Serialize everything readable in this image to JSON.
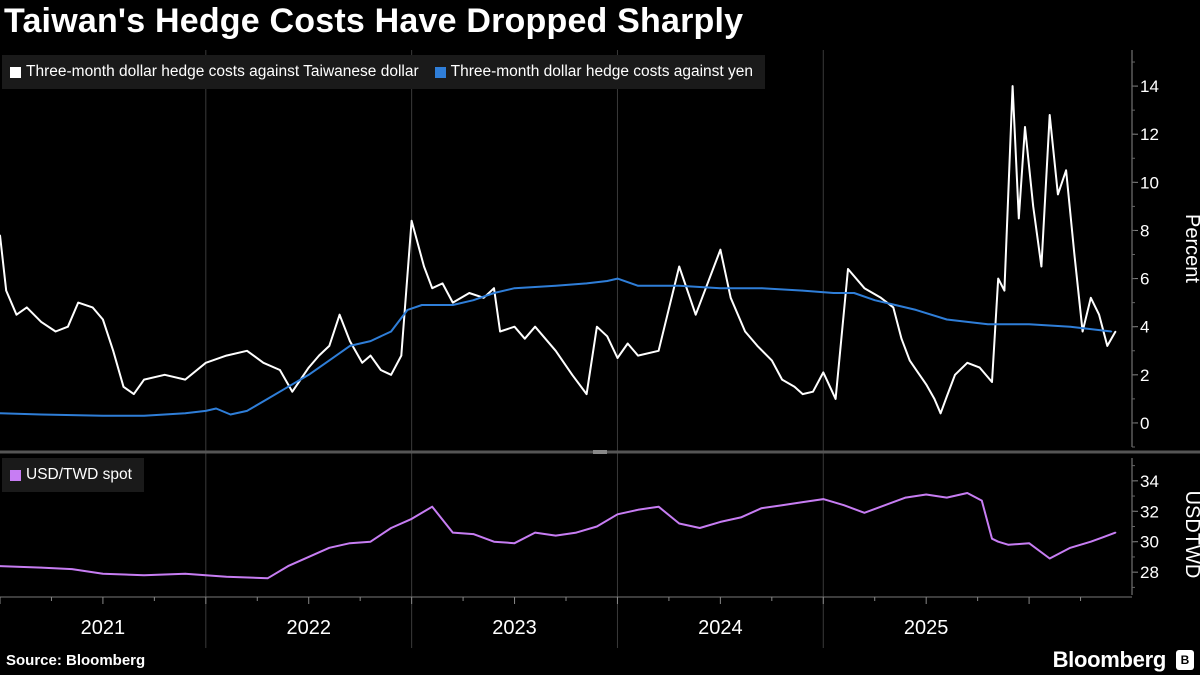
{
  "title": "Taiwan's Hedge Costs Have Dropped Sharply",
  "source": "Source: Bloomberg",
  "brand": "Bloomberg",
  "brand_icon": "bloomberg-terminal-icon",
  "colors": {
    "background": "#000000",
    "twd_hedge": "#ffffff",
    "yen_hedge": "#2f7ed8",
    "usdtwd": "#c77df3",
    "grid": "#3a3a3a",
    "separator": "#555555"
  },
  "chart_data": [
    {
      "type": "line",
      "panel": "top",
      "ylabel": "Percent",
      "ylim": [
        -1,
        15.5
      ],
      "yticks": [
        0,
        2,
        4,
        6,
        8,
        10,
        12,
        14
      ],
      "ytick_labels": [
        "0",
        "2",
        "4",
        "6",
        "8",
        "10",
        "12",
        "14"
      ],
      "legend_position": "top-left",
      "series": [
        {
          "name": "Three-month dollar hedge costs against Taiwanese dollar",
          "color": "#ffffff",
          "x": [
            2020.5,
            2020.53,
            2020.58,
            2020.63,
            2020.7,
            2020.77,
            2020.83,
            2020.88,
            2020.95,
            2021.0,
            2021.05,
            2021.1,
            2021.15,
            2021.2,
            2021.3,
            2021.4,
            2021.5,
            2021.6,
            2021.7,
            2021.78,
            2021.86,
            2021.92,
            2022.0,
            2022.05,
            2022.1,
            2022.15,
            2022.2,
            2022.26,
            2022.3,
            2022.35,
            2022.4,
            2022.45,
            2022.5,
            2022.56,
            2022.6,
            2022.65,
            2022.7,
            2022.78,
            2022.85,
            2022.9,
            2022.93,
            2023.0,
            2023.05,
            2023.1,
            2023.2,
            2023.28,
            2023.35,
            2023.4,
            2023.45,
            2023.5,
            2023.55,
            2023.6,
            2023.7,
            2023.8,
            2023.88,
            2024.0,
            2024.05,
            2024.12,
            2024.18,
            2024.25,
            2024.3,
            2024.36,
            2024.4,
            2024.45,
            2024.5,
            2024.56,
            2024.62,
            2024.7,
            2024.78,
            2024.84,
            2024.88,
            2024.92,
            2024.96,
            2025.0,
            2025.04,
            2025.07,
            2025.1,
            2025.14,
            2025.2,
            2025.26,
            2025.32
          ],
          "values": [
            7.8,
            5.5,
            4.5,
            4.8,
            4.2,
            3.8,
            4.0,
            5.0,
            4.8,
            4.3,
            3.0,
            1.5,
            1.2,
            1.8,
            2.0,
            1.8,
            2.5,
            2.8,
            3.0,
            2.5,
            2.2,
            1.3,
            2.3,
            2.8,
            3.2,
            4.5,
            3.4,
            2.5,
            2.8,
            2.2,
            2.0,
            2.8,
            8.4,
            6.5,
            5.6,
            5.8,
            5.0,
            5.4,
            5.2,
            5.6,
            3.8,
            4.0,
            3.5,
            4.0,
            3.0,
            2.0,
            1.2,
            4.0,
            3.6,
            2.7,
            3.3,
            2.8,
            3.0,
            6.5,
            4.5,
            7.2,
            5.2,
            3.8,
            3.2,
            2.6,
            1.8,
            1.5,
            1.2,
            1.3,
            2.1,
            1.0,
            6.4,
            5.6,
            5.2,
            4.8,
            3.5,
            2.6,
            2.1,
            1.6,
            1.0,
            0.4,
            1.1,
            2.0,
            2.5,
            2.3,
            1.7
          ],
          "x_cont": [
            2025.35,
            2025.38,
            2025.42,
            2025.45,
            2025.48,
            2025.52,
            2025.56,
            2025.6,
            2025.64,
            2025.68,
            2025.72,
            2025.76,
            2025.8,
            2025.84,
            2025.88,
            2025.92
          ],
          "values_cont": [
            6.0,
            5.5,
            14.0,
            8.5,
            12.3,
            9.0,
            6.5,
            12.8,
            9.5,
            10.5,
            7.0,
            3.8,
            5.2,
            4.5,
            3.2,
            3.8
          ]
        },
        {
          "name": "Three-month dollar hedge costs against yen",
          "color": "#2f7ed8",
          "x": [
            2020.5,
            2020.7,
            2021.0,
            2021.2,
            2021.4,
            2021.5,
            2021.55,
            2021.62,
            2021.7,
            2021.8,
            2021.9,
            2022.0,
            2022.1,
            2022.2,
            2022.3,
            2022.4,
            2022.48,
            2022.55,
            2022.7,
            2022.8,
            2022.9,
            2023.0,
            2023.2,
            2023.35,
            2023.45,
            2023.5,
            2023.6,
            2023.8,
            2024.0,
            2024.2,
            2024.4,
            2024.55,
            2024.65,
            2024.75,
            2024.85,
            2024.95,
            2025.1,
            2025.3,
            2025.5,
            2025.7,
            2025.9
          ],
          "values": [
            0.4,
            0.35,
            0.3,
            0.3,
            0.4,
            0.5,
            0.6,
            0.35,
            0.5,
            1.0,
            1.5,
            2.0,
            2.6,
            3.2,
            3.4,
            3.8,
            4.7,
            4.9,
            4.9,
            5.1,
            5.4,
            5.6,
            5.7,
            5.8,
            5.9,
            6.0,
            5.7,
            5.7,
            5.6,
            5.6,
            5.5,
            5.4,
            5.4,
            5.1,
            4.9,
            4.7,
            4.3,
            4.1,
            4.1,
            4.0,
            3.8
          ]
        }
      ]
    },
    {
      "type": "line",
      "panel": "bottom",
      "ylabel": "USDTWD",
      "ylim": [
        26.5,
        35.5
      ],
      "yticks": [
        28,
        30,
        32,
        34
      ],
      "ytick_labels": [
        "28",
        "30",
        "32",
        "34"
      ],
      "legend_position": "top-left",
      "series": [
        {
          "name": "USD/TWD spot",
          "color": "#c77df3",
          "x": [
            2020.5,
            2020.7,
            2020.85,
            2021.0,
            2021.2,
            2021.4,
            2021.6,
            2021.8,
            2021.9,
            2022.0,
            2022.1,
            2022.2,
            2022.3,
            2022.4,
            2022.5,
            2022.6,
            2022.7,
            2022.8,
            2022.9,
            2023.0,
            2023.1,
            2023.2,
            2023.3,
            2023.4,
            2023.5,
            2023.6,
            2023.7,
            2023.8,
            2023.9,
            2024.0,
            2024.1,
            2024.2,
            2024.3,
            2024.4,
            2024.5,
            2024.6,
            2024.7,
            2024.8,
            2024.9,
            2025.0,
            2025.1,
            2025.2,
            2025.27,
            2025.32,
            2025.35,
            2025.4,
            2025.5,
            2025.6,
            2025.7,
            2025.8,
            2025.86,
            2025.92
          ],
          "values": [
            28.4,
            28.3,
            28.2,
            27.9,
            27.8,
            27.9,
            27.7,
            27.6,
            28.4,
            29.0,
            29.6,
            29.9,
            30.0,
            30.9,
            31.5,
            32.3,
            30.6,
            30.5,
            30.0,
            29.9,
            30.6,
            30.4,
            30.6,
            31.0,
            31.8,
            32.1,
            32.3,
            31.2,
            30.9,
            31.3,
            31.6,
            32.2,
            32.4,
            32.6,
            32.8,
            32.4,
            31.9,
            32.4,
            32.9,
            33.1,
            32.9,
            33.2,
            32.7,
            30.2,
            30.0,
            29.8,
            29.9,
            28.9,
            29.6,
            30.0,
            30.3,
            30.6
          ]
        }
      ]
    }
  ],
  "x_axis": {
    "tick_labels": [
      "2021",
      "2022",
      "2023",
      "2024",
      "2025"
    ],
    "label_centers": [
      2021.0,
      2022.0,
      2023.0,
      2024.0,
      2025.0
    ],
    "year_boundaries": [
      2021.5,
      2022.5,
      2023.5,
      2024.5
    ],
    "xlim": [
      2020.5,
      2026.0
    ]
  }
}
